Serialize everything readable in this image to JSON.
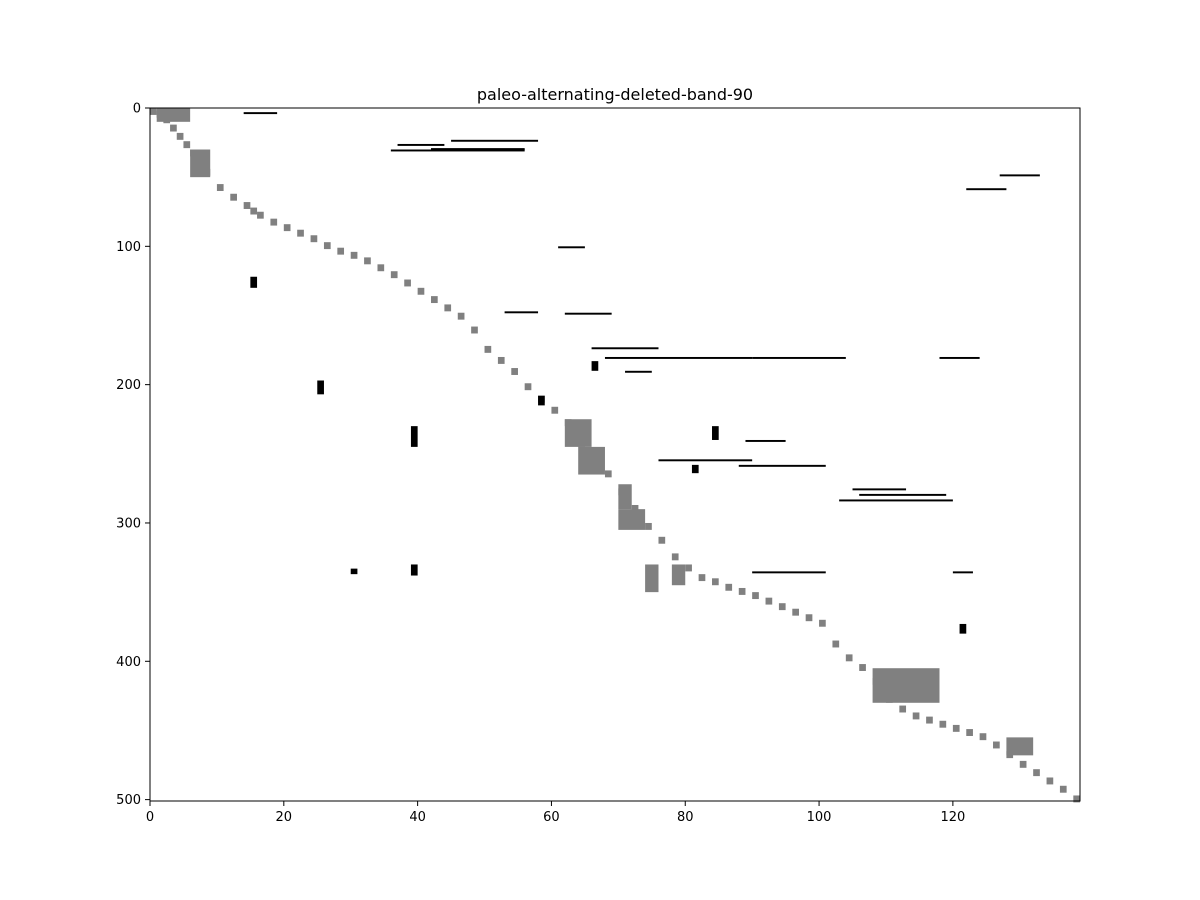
{
  "chart_data": {
    "type": "heatmap",
    "title": "paleo-alternating-deleted-band-90",
    "xlabel": "",
    "ylabel": "",
    "xlim": [
      0,
      139
    ],
    "ylim": [
      501,
      0
    ],
    "x_ticks": [
      0,
      20,
      40,
      60,
      80,
      100,
      120
    ],
    "y_ticks": [
      0,
      100,
      200,
      300,
      400,
      500
    ],
    "grid": false,
    "legend": "none",
    "value_colors": {
      "0": "#ffffff",
      "1": "#000000",
      "2": "#808080"
    },
    "band_diagonal_gray": [
      [
        0,
        0
      ],
      [
        1,
        2
      ],
      [
        2,
        6
      ],
      [
        3,
        12
      ],
      [
        4,
        18
      ],
      [
        5,
        24
      ],
      [
        6,
        30
      ],
      [
        7,
        36
      ],
      [
        8,
        44
      ],
      [
        10,
        55
      ],
      [
        12,
        62
      ],
      [
        14,
        68
      ],
      [
        15,
        72
      ],
      [
        16,
        75
      ],
      [
        18,
        80
      ],
      [
        20,
        84
      ],
      [
        22,
        88
      ],
      [
        24,
        92
      ],
      [
        26,
        97
      ],
      [
        28,
        101
      ],
      [
        30,
        104
      ],
      [
        32,
        108
      ],
      [
        34,
        113
      ],
      [
        36,
        118
      ],
      [
        38,
        124
      ],
      [
        40,
        130
      ],
      [
        42,
        136
      ],
      [
        44,
        142
      ],
      [
        46,
        148
      ],
      [
        48,
        158
      ],
      [
        50,
        172
      ],
      [
        52,
        180
      ],
      [
        54,
        188
      ],
      [
        56,
        199
      ],
      [
        58,
        208
      ],
      [
        60,
        216
      ],
      [
        62,
        225
      ],
      [
        64,
        240
      ],
      [
        66,
        250
      ],
      [
        68,
        262
      ],
      [
        70,
        275
      ],
      [
        72,
        287
      ],
      [
        74,
        300
      ],
      [
        76,
        310
      ],
      [
        78,
        322
      ],
      [
        80,
        330
      ],
      [
        82,
        337
      ],
      [
        84,
        340
      ],
      [
        86,
        344
      ],
      [
        88,
        347
      ],
      [
        90,
        350
      ],
      [
        92,
        354
      ],
      [
        94,
        358
      ],
      [
        96,
        362
      ],
      [
        98,
        366
      ],
      [
        100,
        370
      ],
      [
        102,
        385
      ],
      [
        104,
        395
      ],
      [
        106,
        402
      ],
      [
        108,
        412
      ],
      [
        110,
        425
      ],
      [
        112,
        432
      ],
      [
        114,
        437
      ],
      [
        116,
        440
      ],
      [
        118,
        443
      ],
      [
        120,
        446
      ],
      [
        122,
        449
      ],
      [
        124,
        452
      ],
      [
        126,
        458
      ],
      [
        128,
        465
      ],
      [
        130,
        472
      ],
      [
        132,
        478
      ],
      [
        134,
        484
      ],
      [
        136,
        490
      ],
      [
        138,
        497
      ]
    ],
    "band_clusters_gray": [
      {
        "x": [
          1,
          6
        ],
        "y": [
          0,
          10
        ]
      },
      {
        "x": [
          6,
          9
        ],
        "y": [
          30,
          50
        ]
      },
      {
        "x": [
          62,
          66
        ],
        "y": [
          225,
          245
        ]
      },
      {
        "x": [
          64,
          68
        ],
        "y": [
          245,
          265
        ]
      },
      {
        "x": [
          70,
          72
        ],
        "y": [
          272,
          290
        ]
      },
      {
        "x": [
          70,
          74
        ],
        "y": [
          290,
          305
        ]
      },
      {
        "x": [
          74,
          76
        ],
        "y": [
          330,
          350
        ]
      },
      {
        "x": [
          78,
          80
        ],
        "y": [
          330,
          345
        ]
      },
      {
        "x": [
          108,
          118
        ],
        "y": [
          405,
          430
        ]
      },
      {
        "x": [
          128,
          132
        ],
        "y": [
          455,
          468
        ]
      }
    ],
    "black_segments": [
      {
        "x": [
          36,
          56
        ],
        "y": 30
      },
      {
        "x": [
          42,
          56
        ],
        "y": 29
      },
      {
        "x": [
          37,
          44
        ],
        "y": 26
      },
      {
        "x": [
          66,
          76
        ],
        "y": 173
      },
      {
        "x": [
          68,
          90
        ],
        "y": 180
      },
      {
        "x": [
          90,
          104
        ],
        "y": 180
      },
      {
        "x": [
          62,
          69
        ],
        "y": 148
      },
      {
        "x": [
          53,
          58
        ],
        "y": 147
      },
      {
        "x": [
          76,
          90
        ],
        "y": 254
      },
      {
        "x": [
          88,
          101
        ],
        "y": 258
      },
      {
        "x": [
          103,
          120
        ],
        "y": 283
      },
      {
        "x": [
          106,
          119
        ],
        "y": 279
      },
      {
        "x": [
          105,
          113
        ],
        "y": 275
      },
      {
        "x": [
          89,
          95
        ],
        "y": 240
      },
      {
        "x": [
          90,
          101
        ],
        "y": 335
      },
      {
        "x": [
          71,
          75
        ],
        "y": 190
      },
      {
        "x": [
          61,
          65
        ],
        "y": 100
      },
      {
        "x": [
          120,
          123
        ],
        "y": 335
      },
      {
        "x": [
          14,
          19
        ],
        "y": 3
      },
      {
        "x": [
          118,
          124
        ],
        "y": 180
      },
      {
        "x": [
          127,
          133
        ],
        "y": 48
      },
      {
        "x": [
          122,
          128
        ],
        "y": 58
      },
      {
        "x": [
          45,
          58
        ],
        "y": 23
      }
    ],
    "black_blocks": [
      {
        "x": [
          15,
          16
        ],
        "y": [
          122,
          130
        ]
      },
      {
        "x": [
          25,
          26
        ],
        "y": [
          197,
          207
        ]
      },
      {
        "x": [
          39,
          40
        ],
        "y": [
          230,
          245
        ]
      },
      {
        "x": [
          39,
          40
        ],
        "y": [
          330,
          338
        ]
      },
      {
        "x": [
          66,
          67
        ],
        "y": [
          183,
          190
        ]
      },
      {
        "x": [
          121,
          122
        ],
        "y": [
          373,
          380
        ]
      },
      {
        "x": [
          81,
          82
        ],
        "y": [
          258,
          264
        ]
      },
      {
        "x": [
          84,
          85
        ],
        "y": [
          230,
          240
        ]
      },
      {
        "x": [
          58,
          59
        ],
        "y": [
          208,
          215
        ]
      },
      {
        "x": [
          30,
          31
        ],
        "y": [
          333,
          337
        ]
      }
    ]
  }
}
